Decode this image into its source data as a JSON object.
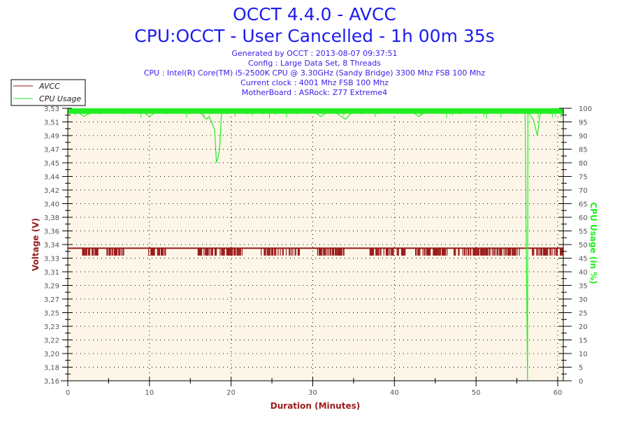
{
  "chart_data": {
    "type": "line",
    "title": "OCCT 4.4.0 - AVCC",
    "subtitle": "CPU:OCCT - User Cancelled - 1h 00m 35s",
    "info_lines": [
      "Generated by OCCT : 2013-08-07 09:37:51",
      "Config : Large Data Set, 8 Threads",
      "CPU : Intel(R) Core(TM) i5-2500K CPU @ 3.30GHz (Sandy Bridge) 3300 Mhz FSB 100 Mhz",
      "Current clock : 4001 Mhz FSB 100 Mhz",
      "MotherBoard : ASRock: Z77 Extreme4"
    ],
    "xlabel": "Duration (Minutes)",
    "ylabel_left": "Voltage (V)",
    "ylabel_right": "CPU Usage (in %)",
    "xlim": [
      0,
      60.6
    ],
    "ylim_left": [
      3.16,
      3.53
    ],
    "ylim_right": [
      0,
      100
    ],
    "x_ticks": [
      "0",
      "10",
      "20",
      "30",
      "40",
      "50",
      "60"
    ],
    "left_ticks": [
      "3,53",
      "3,51",
      "3,49",
      "3,47",
      "3,45",
      "3,44",
      "3,42",
      "3,40",
      "3,38",
      "3,36",
      "3,34",
      "3,33",
      "3,31",
      "3,29",
      "3,27",
      "3,25",
      "3,23",
      "3,22",
      "3,20",
      "3,18",
      "3,16"
    ],
    "right_ticks": [
      "100",
      "95",
      "90",
      "85",
      "80",
      "75",
      "70",
      "65",
      "60",
      "55",
      "50",
      "45",
      "40",
      "35",
      "30",
      "25",
      "20",
      "15",
      "10",
      "5",
      "0"
    ],
    "grid": true,
    "legend": {
      "position": "top-left",
      "entries": [
        "AVCC",
        "CPU Usage"
      ]
    },
    "colors": {
      "avcc": "#9b1b1b",
      "cpu": "#22ee22",
      "plot_bg": "#fdf6e8"
    },
    "series": [
      {
        "name": "AVCC",
        "axis": "left",
        "baseline": 3.34,
        "low_value": 3.33,
        "low_intervals_minutes": [
          [
            1.8,
            3.7
          ],
          [
            4.6,
            7.0
          ],
          [
            9.9,
            12.2
          ],
          [
            15.5,
            21.4
          ],
          [
            23.6,
            28.5
          ],
          [
            30.5,
            34.0
          ],
          [
            37.0,
            41.5
          ],
          [
            42.5,
            46.5
          ],
          [
            47.3,
            55.5
          ],
          [
            56.8,
            60.6
          ]
        ]
      },
      {
        "name": "CPU Usage",
        "axis": "right",
        "baseline": 99,
        "x": [
          0,
          1,
          2,
          3,
          4,
          5,
          6,
          7,
          8,
          9,
          10,
          11,
          12,
          13,
          14,
          15,
          16,
          17,
          17.3,
          17.6,
          18.0,
          18.2,
          18.4,
          18.6,
          18.8,
          19.0,
          19.5,
          20,
          21,
          22,
          23,
          24,
          25,
          26,
          27,
          28,
          29,
          30,
          31,
          32,
          33,
          34,
          35,
          36,
          37,
          38,
          39,
          40,
          41,
          42,
          43,
          44,
          45,
          46,
          47,
          48,
          49,
          50,
          51,
          52,
          53,
          54,
          55,
          56,
          56.3,
          56.35,
          56.5,
          57,
          57.5,
          57.8,
          58,
          59,
          60,
          60.6
        ],
        "values": [
          98,
          99,
          97,
          99,
          98,
          99,
          99,
          98,
          99,
          99,
          97,
          99,
          98,
          99,
          99,
          98,
          99,
          96,
          97,
          95,
          92,
          80,
          82,
          85,
          97,
          99,
          98,
          99,
          99,
          98,
          99,
          98,
          99,
          99,
          99,
          98,
          99,
          99,
          97,
          99,
          98,
          96,
          99,
          98,
          99,
          98,
          99,
          99,
          98,
          99,
          97,
          99,
          99,
          98,
          99,
          98,
          99,
          99,
          98,
          99,
          99,
          99,
          98,
          99,
          0,
          99,
          98,
          96,
          90,
          97,
          99,
          98,
          99,
          98
        ]
      }
    ]
  }
}
